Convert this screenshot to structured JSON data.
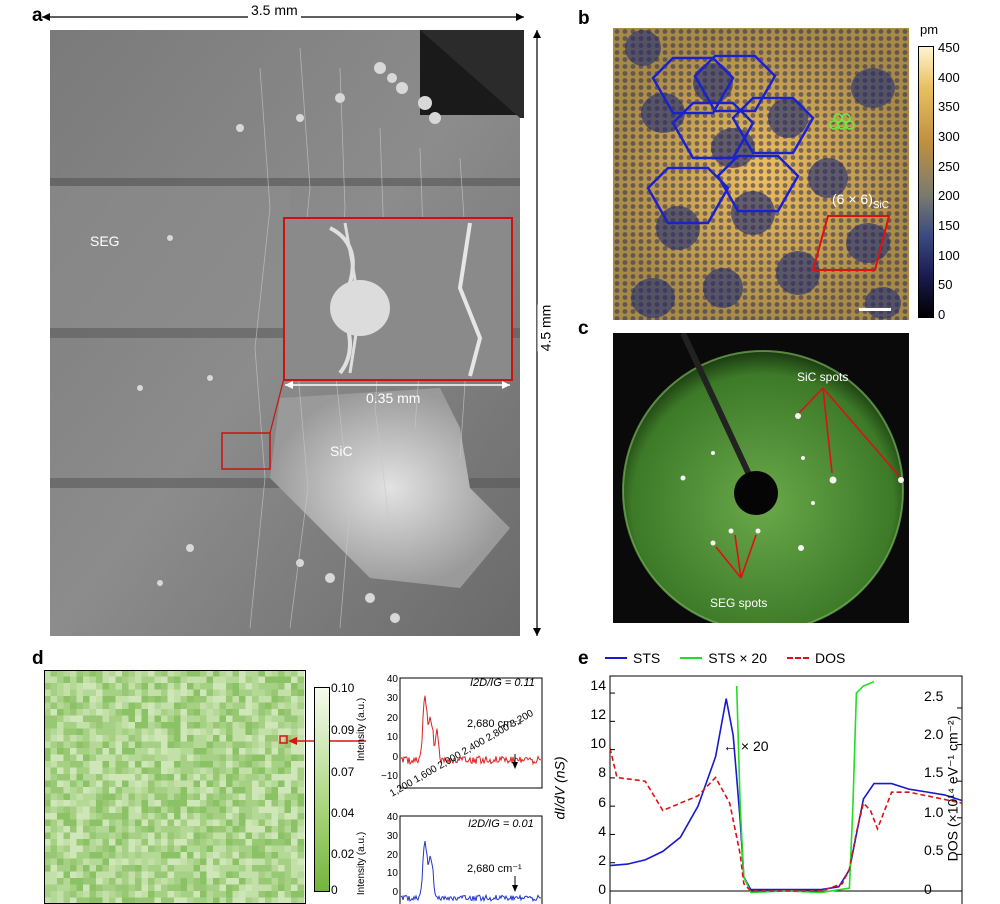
{
  "panels": {
    "a": {
      "letter": "a",
      "width_label": "3.5 mm",
      "height_label": "4.5 mm",
      "inset_scale_label": "0.35 mm",
      "region_left": "SEG",
      "region_right": "SiC"
    },
    "b": {
      "letter": "b",
      "cell_label": "(6 × 6)",
      "cell_sub": "SiC",
      "colorbar_unit": "pm",
      "colorbar_ticks": [
        "450",
        "400",
        "350",
        "300",
        "250",
        "200",
        "150",
        "100",
        "50",
        "0"
      ]
    },
    "c": {
      "letter": "c",
      "label_sic": "SiC spots",
      "label_seg": "SEG spots"
    },
    "d": {
      "letter": "d",
      "colorbar_ticks": [
        "0.10",
        "0.09",
        "0.07",
        "0.04",
        "0.02",
        "0"
      ],
      "spec_top": {
        "ratio_label": "I2D/IG = 0.11",
        "peak_label": "2,680 cm⁻¹",
        "y_ticks": [
          "40",
          "30",
          "20",
          "10",
          "0",
          "−10"
        ],
        "x_ticks": [
          "1,200",
          "1,600",
          "2,000",
          "2,400",
          "2,800",
          "3,200"
        ],
        "ylabel": "Intensity (a.u.)",
        "color": "#dd2222"
      },
      "spec_bottom": {
        "ratio_label": "I2D/IG = 0.01",
        "peak_label": "2,680 cm⁻¹",
        "y_ticks": [
          "40",
          "30",
          "20",
          "10",
          "0"
        ],
        "ylabel": "Intensity (a.u.)",
        "color": "#2233cc"
      }
    },
    "e": {
      "letter": "e",
      "legend": [
        {
          "name": "STS",
          "color": "#1a1acc",
          "style": "solid"
        },
        {
          "name": "STS × 20",
          "color": "#22dd22",
          "style": "solid"
        },
        {
          "name": "DOS",
          "color": "#dd1111",
          "style": "dashed"
        }
      ],
      "annotation": "× 20",
      "y_left_ticks": [
        "14",
        "12",
        "10",
        "8",
        "6",
        "4",
        "2",
        "0"
      ],
      "y_right_ticks": [
        "2.5",
        "2.0",
        "1.5",
        "1.0",
        "0.5",
        "0"
      ],
      "ylabel_left": "dI/dV (nS)",
      "ylabel_right": "DOS (×10¹⁴ eV⁻¹ cm⁻²)"
    }
  },
  "chart_data": [
    {
      "type": "line",
      "panel": "e",
      "series": [
        {
          "name": "STS",
          "axis": "left",
          "x": [
            0,
            0.05,
            0.1,
            0.15,
            0.2,
            0.25,
            0.3,
            0.33,
            0.35,
            0.37,
            0.38,
            0.4,
            0.45,
            0.5,
            0.55,
            0.6,
            0.65,
            0.68,
            0.7,
            0.72,
            0.75,
            0.8,
            0.85,
            0.9,
            0.95,
            1.0
          ],
          "y": [
            1.8,
            1.9,
            2.2,
            2.8,
            3.8,
            6.0,
            9.5,
            13.6,
            11.0,
            5.0,
            1.0,
            0.1,
            0.1,
            0.1,
            0.1,
            0.1,
            0.3,
            1.5,
            4.0,
            6.5,
            7.6,
            7.6,
            7.2,
            7.0,
            6.8,
            6.4
          ]
        },
        {
          "name": "STS × 20",
          "axis": "left",
          "x": [
            0.36,
            0.37,
            0.38,
            0.4,
            0.5,
            0.6,
            0.68,
            0.69,
            0.7,
            0.72,
            0.75
          ],
          "y": [
            14.5,
            6.0,
            1.0,
            -0.1,
            0.0,
            -0.1,
            0.2,
            6.0,
            14.0,
            14.5,
            14.8
          ]
        },
        {
          "name": "DOS",
          "axis": "right",
          "x": [
            0,
            0.02,
            0.1,
            0.15,
            0.2,
            0.25,
            0.3,
            0.34,
            0.37,
            0.38,
            0.4,
            0.5,
            0.6,
            0.66,
            0.68,
            0.7,
            0.72,
            0.74,
            0.76,
            0.8,
            0.85,
            0.9,
            1.0
          ],
          "y": [
            1.95,
            1.55,
            1.5,
            1.1,
            1.2,
            1.3,
            1.55,
            1.2,
            0.5,
            0.1,
            0.0,
            0.0,
            0.0,
            0.1,
            0.3,
            0.8,
            1.2,
            1.1,
            0.85,
            1.35,
            1.35,
            1.3,
            1.2
          ]
        }
      ],
      "ylim_left": [
        0,
        14.5
      ],
      "ylim_right": [
        0,
        2.8
      ]
    }
  ]
}
